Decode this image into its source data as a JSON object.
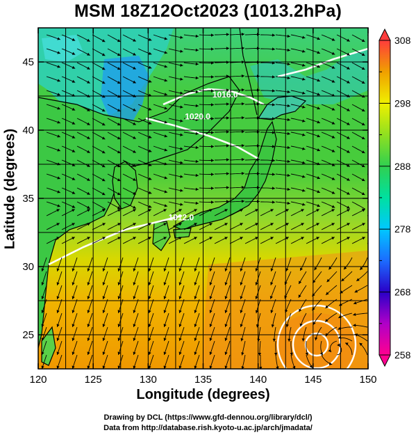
{
  "chart_data": {
    "type": "heatmap",
    "title": "MSM 18Z12Oct2023 (1013.2hPa)",
    "xlabel": "Longitude (degrees)",
    "ylabel": "Latitude  (degrees)",
    "xlim": [
      120,
      150
    ],
    "ylim": [
      22.5,
      47.5
    ],
    "x_ticks": [
      "120",
      "125",
      "130",
      "135",
      "140",
      "145",
      "150"
    ],
    "y_ticks": [
      "25",
      "30",
      "35",
      "40",
      "45"
    ],
    "grid": true,
    "field": "temperature (K) at 1013.2hPa with streamlines",
    "colorbar": {
      "range": [
        258,
        308
      ],
      "ticks": [
        "308",
        "298",
        "288",
        "278",
        "268",
        "258"
      ],
      "colors": [
        "#ff0090",
        "#b000c8",
        "#2a00c8",
        "#1c6cff",
        "#00c8ff",
        "#00e0a0",
        "#30d050",
        "#90e020",
        "#f0f000",
        "#f0a000",
        "#ff5000",
        "#ff3c3c"
      ]
    },
    "contours": [
      {
        "label": "1016.0",
        "lon": 137.0,
        "lat": 42.4
      },
      {
        "label": "1020.0",
        "lon": 134.5,
        "lat": 40.8
      },
      {
        "label": "1012.0",
        "lon": 133.0,
        "lat": 33.4
      }
    ],
    "cyclone_center": {
      "lon": 147.0,
      "lat": 24.0
    }
  },
  "credits": {
    "line1": "Drawing by DCL (https://www.gfd-dennou.org/library/dcl/)",
    "line2": "Data from http://database.rish.kyoto-u.ac.jp/arch/jmadata/"
  }
}
